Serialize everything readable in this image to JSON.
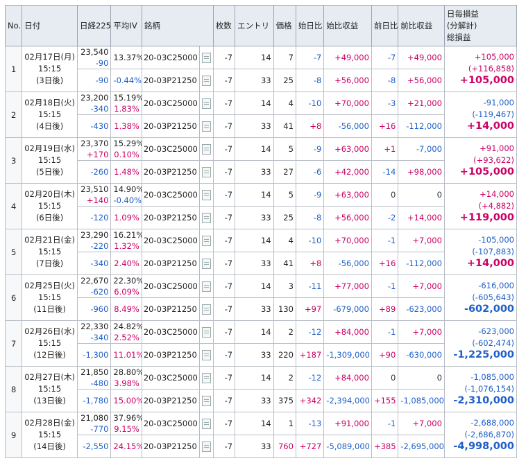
{
  "headers": {
    "no": "No.",
    "date": "日付",
    "nikkei": "日経225",
    "iv": "平均IV",
    "issue": "銘柄",
    "qty": "枚数",
    "entry": "エントリ",
    "price": "価格",
    "start_diff": "始日比",
    "start_profit": "始比収益",
    "prev_diff": "前日比",
    "prev_profit": "前比収益",
    "total_l1": "日毎損益",
    "total_l2": "(分解計)",
    "total_l3": "総損益"
  },
  "rows": [
    {
      "no": "1",
      "date": "02月17日(月)",
      "time": "15:15",
      "elapsed": "(3日後)",
      "nikkei": "23,540",
      "nikkei_diff1": "-90",
      "nikkei_diff2": "-90",
      "iv": "13.37%",
      "iv_call": "",
      "iv_put": "-0.44%",
      "total_daily": "+105,000",
      "total_breakdown": "(+116,858)",
      "total": "+105,000",
      "legs": [
        {
          "issue": "20-03C25000",
          "qty": "-7",
          "entry": "14",
          "price": "7",
          "start_diff": "-7",
          "start_profit": "+49,000",
          "prev_diff": "-7",
          "prev_profit": "+49,000"
        },
        {
          "issue": "20-03P21250",
          "qty": "-7",
          "entry": "33",
          "price": "25",
          "start_diff": "-8",
          "start_profit": "+56,000",
          "prev_diff": "-8",
          "prev_profit": "+56,000"
        }
      ]
    },
    {
      "no": "2",
      "date": "02月18日(火)",
      "time": "15:15",
      "elapsed": "(4日後)",
      "nikkei": "23,200",
      "nikkei_diff1": "-340",
      "nikkei_diff2": "-430",
      "iv": "15.19%",
      "iv_call": "1.83%",
      "iv_put": "1.38%",
      "total_daily": "-91,000",
      "total_breakdown": "(-119,467)",
      "total": "+14,000",
      "legs": [
        {
          "issue": "20-03C25000",
          "qty": "-7",
          "entry": "14",
          "price": "4",
          "start_diff": "-10",
          "start_profit": "+70,000",
          "prev_diff": "-3",
          "prev_profit": "+21,000"
        },
        {
          "issue": "20-03P21250",
          "qty": "-7",
          "entry": "33",
          "price": "41",
          "start_diff": "+8",
          "start_profit": "-56,000",
          "prev_diff": "+16",
          "prev_profit": "-112,000"
        }
      ]
    },
    {
      "no": "3",
      "date": "02月19日(水)",
      "time": "15:15",
      "elapsed": "(5日後)",
      "nikkei": "23,370",
      "nikkei_diff1": "+170",
      "nikkei_diff2": "-260",
      "iv": "15.29%",
      "iv_call": "0.10%",
      "iv_put": "1.48%",
      "total_daily": "+91,000",
      "total_breakdown": "(+93,622)",
      "total": "+105,000",
      "legs": [
        {
          "issue": "20-03C25000",
          "qty": "-7",
          "entry": "14",
          "price": "5",
          "start_diff": "-9",
          "start_profit": "+63,000",
          "prev_diff": "+1",
          "prev_profit": "-7,000"
        },
        {
          "issue": "20-03P21250",
          "qty": "-7",
          "entry": "33",
          "price": "27",
          "start_diff": "-6",
          "start_profit": "+42,000",
          "prev_diff": "-14",
          "prev_profit": "+98,000"
        }
      ]
    },
    {
      "no": "4",
      "date": "02月20日(木)",
      "time": "15:15",
      "elapsed": "(6日後)",
      "nikkei": "23,510",
      "nikkei_diff1": "+140",
      "nikkei_diff2": "-120",
      "iv": "14.90%",
      "iv_call": "-0.40%",
      "iv_put": "1.09%",
      "total_daily": "+14,000",
      "total_breakdown": "(+4,882)",
      "total": "+119,000",
      "legs": [
        {
          "issue": "20-03C25000",
          "qty": "-7",
          "entry": "14",
          "price": "5",
          "start_diff": "-9",
          "start_profit": "+63,000",
          "prev_diff": "0",
          "prev_profit": "0"
        },
        {
          "issue": "20-03P21250",
          "qty": "-7",
          "entry": "33",
          "price": "25",
          "start_diff": "-8",
          "start_profit": "+56,000",
          "prev_diff": "-2",
          "prev_profit": "+14,000"
        }
      ]
    },
    {
      "no": "5",
      "date": "02月21日(金)",
      "time": "15:15",
      "elapsed": "(7日後)",
      "nikkei": "23,290",
      "nikkei_diff1": "-220",
      "nikkei_diff2": "-340",
      "iv": "16.21%",
      "iv_call": "1.32%",
      "iv_put": "2.40%",
      "total_daily": "-105,000",
      "total_breakdown": "(-107,883)",
      "total": "+14,000",
      "legs": [
        {
          "issue": "20-03C25000",
          "qty": "-7",
          "entry": "14",
          "price": "4",
          "start_diff": "-10",
          "start_profit": "+70,000",
          "prev_diff": "-1",
          "prev_profit": "+7,000"
        },
        {
          "issue": "20-03P21250",
          "qty": "-7",
          "entry": "33",
          "price": "41",
          "start_diff": "+8",
          "start_profit": "-56,000",
          "prev_diff": "+16",
          "prev_profit": "-112,000"
        }
      ]
    },
    {
      "no": "6",
      "date": "02月25日(火)",
      "time": "15:15",
      "elapsed": "(11日後)",
      "nikkei": "22,670",
      "nikkei_diff1": "-620",
      "nikkei_diff2": "-960",
      "iv": "22.30%",
      "iv_call": "6.09%",
      "iv_put": "8.49%",
      "total_daily": "-616,000",
      "total_breakdown": "(-605,643)",
      "total": "-602,000",
      "legs": [
        {
          "issue": "20-03C25000",
          "qty": "-7",
          "entry": "14",
          "price": "3",
          "start_diff": "-11",
          "start_profit": "+77,000",
          "prev_diff": "-1",
          "prev_profit": "+7,000"
        },
        {
          "issue": "20-03P21250",
          "qty": "-7",
          "entry": "33",
          "price": "130",
          "start_diff": "+97",
          "start_profit": "-679,000",
          "prev_diff": "+89",
          "prev_profit": "-623,000"
        }
      ]
    },
    {
      "no": "7",
      "date": "02月26日(水)",
      "time": "15:15",
      "elapsed": "(12日後)",
      "nikkei": "22,330",
      "nikkei_diff1": "-340",
      "nikkei_diff2": "-1,300",
      "iv": "24.82%",
      "iv_call": "2.52%",
      "iv_put": "11.01%",
      "total_daily": "-623,000",
      "total_breakdown": "(-602,474)",
      "total": "-1,225,000",
      "legs": [
        {
          "issue": "20-03C25000",
          "qty": "-7",
          "entry": "14",
          "price": "2",
          "start_diff": "-12",
          "start_profit": "+84,000",
          "prev_diff": "-1",
          "prev_profit": "+7,000"
        },
        {
          "issue": "20-03P21250",
          "qty": "-7",
          "entry": "33",
          "price": "220",
          "start_diff": "+187",
          "start_profit": "-1,309,000",
          "prev_diff": "+90",
          "prev_profit": "-630,000"
        }
      ]
    },
    {
      "no": "8",
      "date": "02月27日(木)",
      "time": "15:15",
      "elapsed": "(13日後)",
      "nikkei": "21,850",
      "nikkei_diff1": "-480",
      "nikkei_diff2": "-1,780",
      "iv": "28.80%",
      "iv_call": "3.98%",
      "iv_put": "15.00%",
      "total_daily": "-1,085,000",
      "total_breakdown": "(-1,076,154)",
      "total": "-2,310,000",
      "legs": [
        {
          "issue": "20-03C25000",
          "qty": "-7",
          "entry": "14",
          "price": "2",
          "start_diff": "-12",
          "start_profit": "+84,000",
          "prev_diff": "0",
          "prev_profit": "0"
        },
        {
          "issue": "20-03P21250",
          "qty": "-7",
          "entry": "33",
          "price": "375",
          "start_diff": "+342",
          "start_profit": "-2,394,000",
          "prev_diff": "+155",
          "prev_profit": "-1,085,000"
        }
      ]
    },
    {
      "no": "9",
      "date": "02月28日(金)",
      "time": "15:15",
      "elapsed": "(14日後)",
      "nikkei": "21,080",
      "nikkei_diff1": "-770",
      "nikkei_diff2": "-2,550",
      "iv": "37.96%",
      "iv_call": "9.15%",
      "iv_put": "24.15%",
      "total_daily": "-2,688,000",
      "total_breakdown": "(-2,686,870)",
      "total": "-4,998,000",
      "legs": [
        {
          "issue": "20-03C25000",
          "qty": "-7",
          "entry": "14",
          "price": "1",
          "start_diff": "-13",
          "start_profit": "+91,000",
          "prev_diff": "-1",
          "prev_profit": "+7,000"
        },
        {
          "issue": "20-03P21250",
          "qty": "-7",
          "entry": "33",
          "price": "760",
          "price_highlight": true,
          "start_diff": "+727",
          "start_profit": "-5,089,000",
          "prev_diff": "+385",
          "prev_profit": "-2,695,000"
        }
      ]
    }
  ],
  "colors": {
    "positive": "#cc0066",
    "negative": "#1e5fc8",
    "header_bg": "#e7ecf2",
    "border": "#b8bec6"
  },
  "icons": {
    "detail": "document-icon"
  }
}
